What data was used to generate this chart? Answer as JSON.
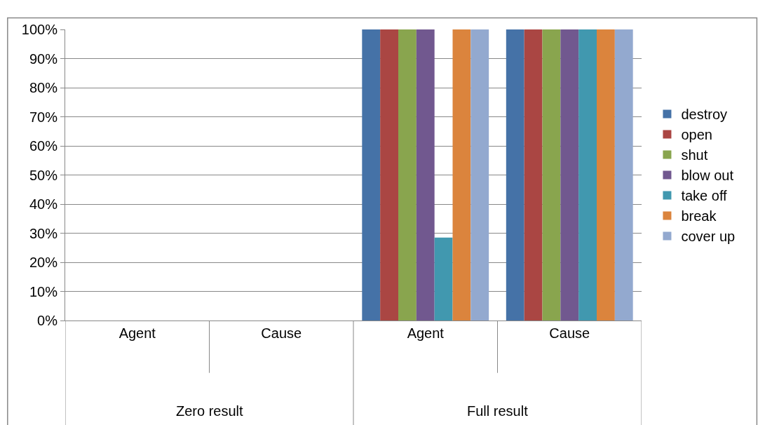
{
  "chart_data": {
    "type": "bar",
    "categories": [
      "Agent",
      "Cause",
      "Agent",
      "Cause"
    ],
    "series": [
      {
        "name": "destroy",
        "color": "#4572a7",
        "values": [
          0,
          0,
          100,
          100
        ]
      },
      {
        "name": "open",
        "color": "#aa4643",
        "values": [
          0,
          0,
          100,
          100
        ]
      },
      {
        "name": "shut",
        "color": "#89a54e",
        "values": [
          0,
          0,
          100,
          100
        ]
      },
      {
        "name": "blow out",
        "color": "#71588f",
        "values": [
          0,
          0,
          100,
          100
        ]
      },
      {
        "name": "take off",
        "color": "#4198af",
        "values": [
          0,
          0,
          28.5,
          100
        ]
      },
      {
        "name": "break",
        "color": "#db843d",
        "values": [
          0,
          0,
          100,
          100
        ]
      },
      {
        "name": "cover up",
        "color": "#93a9cf",
        "values": [
          0,
          0,
          100,
          100
        ]
      }
    ],
    "annotations": [
      "Zero result",
      "Full result"
    ],
    "ylim": [
      0,
      100
    ],
    "yticks": [
      {
        "value": 0,
        "label": "0%"
      },
      {
        "value": 10,
        "label": "10%"
      },
      {
        "value": 20,
        "label": "20%"
      },
      {
        "value": 30,
        "label": "30%"
      },
      {
        "value": 40,
        "label": "40%"
      },
      {
        "value": 50,
        "label": "50%"
      },
      {
        "value": 60,
        "label": "60%"
      },
      {
        "value": 70,
        "label": "70%"
      },
      {
        "value": 80,
        "label": "80%"
      },
      {
        "value": 90,
        "label": "90%"
      },
      {
        "value": 100,
        "label": "100%"
      }
    ],
    "grid": "y",
    "legend": "right"
  }
}
